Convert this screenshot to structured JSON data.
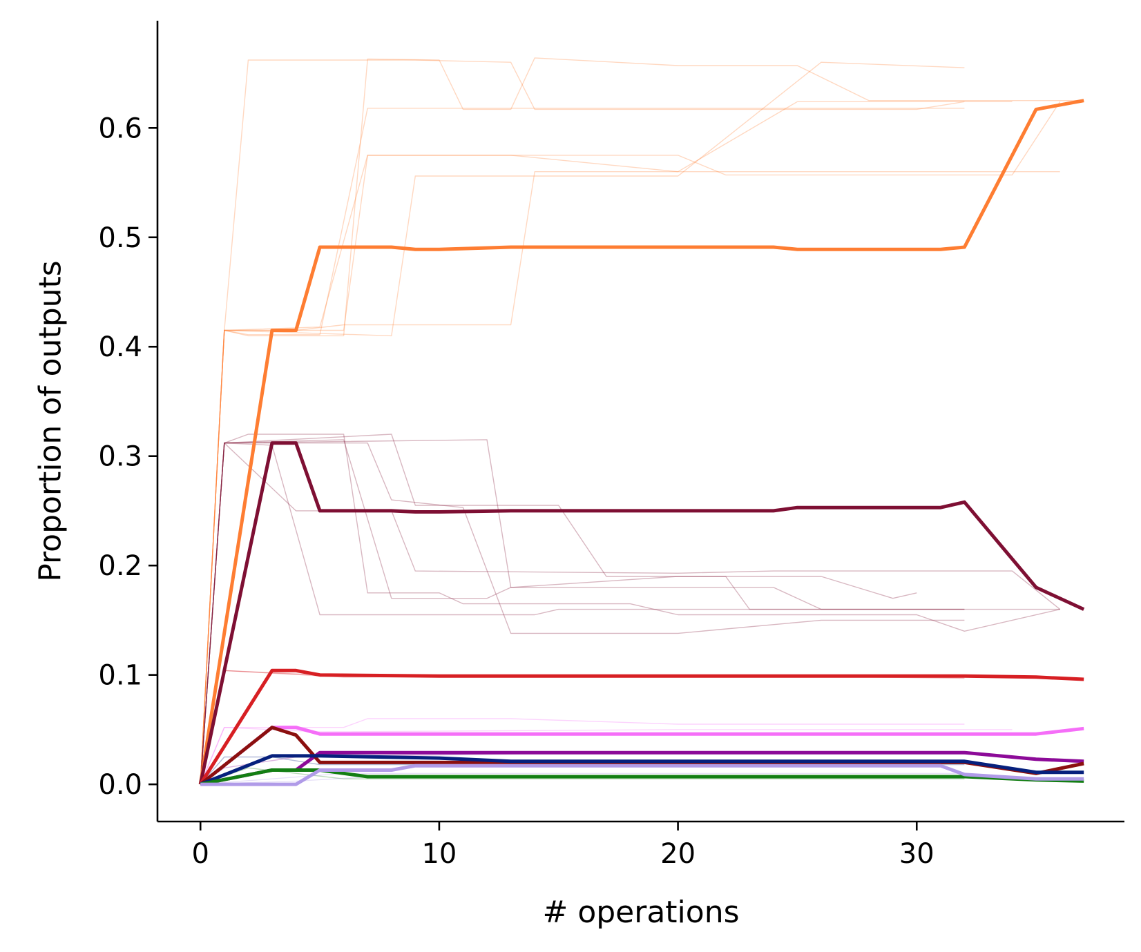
{
  "chart_data": {
    "type": "line",
    "title": "",
    "xlabel": "# operations",
    "ylabel": "Proportion of outputs",
    "xlim": [
      -1.8,
      38.7
    ],
    "ylim": [
      -0.034,
      0.698
    ],
    "xticks": [
      0,
      10,
      20,
      30
    ],
    "xtick_labels": [
      "0",
      "10",
      "20",
      "30"
    ],
    "yticks": [
      0.0,
      0.1,
      0.2,
      0.3,
      0.4,
      0.5,
      0.6
    ],
    "ytick_labels": [
      "0.0",
      "0.1",
      "0.2",
      "0.3",
      "0.4",
      "0.5",
      "0.6"
    ],
    "grid": false,
    "legend": "none",
    "series": [
      {
        "color": "#fe7d32",
        "highlight": false,
        "points": [
          [
            0,
            0
          ],
          [
            1,
            0.415
          ],
          [
            2,
            0.41
          ],
          [
            6,
            0.41
          ],
          [
            7,
            0.663
          ],
          [
            10,
            0.662
          ],
          [
            11,
            0.617
          ],
          [
            13,
            0.617
          ],
          [
            14,
            0.664
          ],
          [
            20,
            0.657
          ],
          [
            25,
            0.657
          ],
          [
            28,
            0.625
          ],
          [
            37,
            0.625
          ]
        ]
      },
      {
        "color": "#fe7d32",
        "highlight": false,
        "points": [
          [
            0,
            0
          ],
          [
            1,
            0.415
          ],
          [
            2,
            0.411
          ],
          [
            5,
            0.411
          ],
          [
            7,
            0.618
          ],
          [
            20,
            0.618
          ],
          [
            32,
            0.618
          ]
        ]
      },
      {
        "color": "#fe7d32",
        "highlight": false,
        "points": [
          [
            0,
            0
          ],
          [
            1,
            0.415
          ],
          [
            2,
            0.662
          ],
          [
            9,
            0.662
          ],
          [
            13,
            0.66
          ],
          [
            14,
            0.617
          ],
          [
            30,
            0.617
          ],
          [
            32,
            0.624
          ]
        ]
      },
      {
        "color": "#fe7d32",
        "highlight": false,
        "points": [
          [
            0,
            0
          ],
          [
            1,
            0.415
          ],
          [
            5,
            0.418
          ],
          [
            7,
            0.575
          ],
          [
            20,
            0.575
          ],
          [
            22,
            0.557
          ],
          [
            34,
            0.557
          ],
          [
            36,
            0.624
          ]
        ]
      },
      {
        "color": "#fe7d32",
        "highlight": false,
        "points": [
          [
            0,
            0
          ],
          [
            1,
            0.415
          ],
          [
            4,
            0.415
          ],
          [
            6,
            0.42
          ],
          [
            13,
            0.42
          ],
          [
            14,
            0.56
          ],
          [
            36,
            0.56
          ]
        ]
      },
      {
        "color": "#fe7d32",
        "highlight": false,
        "points": [
          [
            0,
            0
          ],
          [
            1,
            0.415
          ],
          [
            8,
            0.41
          ],
          [
            9,
            0.556
          ],
          [
            20,
            0.556
          ],
          [
            26,
            0.66
          ],
          [
            32,
            0.655
          ]
        ]
      },
      {
        "color": "#fe7d32",
        "highlight": false,
        "points": [
          [
            0,
            0
          ],
          [
            1,
            0.415
          ],
          [
            6,
            0.415
          ],
          [
            7,
            0.575
          ],
          [
            13,
            0.575
          ],
          [
            20,
            0.56
          ],
          [
            25,
            0.624
          ],
          [
            34,
            0.624
          ]
        ]
      },
      {
        "color": "#7e0f33",
        "highlight": false,
        "points": [
          [
            0,
            0
          ],
          [
            1,
            0.312
          ],
          [
            2,
            0.32
          ],
          [
            6,
            0.32
          ],
          [
            7,
            0.175
          ],
          [
            10,
            0.175
          ],
          [
            11,
            0.165
          ],
          [
            18,
            0.165
          ],
          [
            20,
            0.155
          ],
          [
            30,
            0.155
          ],
          [
            32,
            0.14
          ],
          [
            36,
            0.16
          ]
        ]
      },
      {
        "color": "#7e0f33",
        "highlight": false,
        "points": [
          [
            0,
            0
          ],
          [
            1,
            0.312
          ],
          [
            3,
            0.31
          ],
          [
            5,
            0.155
          ],
          [
            14,
            0.155
          ],
          [
            15,
            0.16
          ],
          [
            36,
            0.16
          ]
        ]
      },
      {
        "color": "#7e0f33",
        "highlight": false,
        "points": [
          [
            0,
            0
          ],
          [
            1,
            0.312
          ],
          [
            4,
            0.25
          ],
          [
            8,
            0.25
          ],
          [
            9,
            0.195
          ],
          [
            20,
            0.193
          ],
          [
            24,
            0.195
          ],
          [
            34,
            0.195
          ],
          [
            36,
            0.16
          ]
        ]
      },
      {
        "color": "#7e0f33",
        "highlight": false,
        "points": [
          [
            0,
            0
          ],
          [
            1,
            0.312
          ],
          [
            6,
            0.315
          ],
          [
            8,
            0.17
          ],
          [
            12,
            0.17
          ],
          [
            13,
            0.18
          ],
          [
            20,
            0.19
          ],
          [
            22,
            0.19
          ],
          [
            23,
            0.16
          ],
          [
            32,
            0.16
          ]
        ]
      },
      {
        "color": "#7e0f33",
        "highlight": false,
        "points": [
          [
            0,
            0
          ],
          [
            1,
            0.312
          ],
          [
            8,
            0.32
          ],
          [
            9,
            0.255
          ],
          [
            15,
            0.255
          ],
          [
            17,
            0.19
          ],
          [
            26,
            0.19
          ],
          [
            29,
            0.17
          ],
          [
            30,
            0.175
          ]
        ]
      },
      {
        "color": "#7e0f33",
        "highlight": false,
        "points": [
          [
            0,
            0
          ],
          [
            1,
            0.312
          ],
          [
            7,
            0.312
          ],
          [
            8,
            0.26
          ],
          [
            11,
            0.253
          ],
          [
            13,
            0.138
          ],
          [
            20,
            0.138
          ],
          [
            26,
            0.15
          ],
          [
            32,
            0.15
          ]
        ]
      },
      {
        "color": "#7e0f33",
        "highlight": false,
        "points": [
          [
            0,
            0
          ],
          [
            1,
            0.312
          ],
          [
            12,
            0.315
          ],
          [
            13,
            0.18
          ],
          [
            24,
            0.18
          ],
          [
            26,
            0.16
          ],
          [
            32,
            0.16
          ]
        ]
      },
      {
        "color": "#d71f23",
        "highlight": false,
        "points": [
          [
            0,
            0
          ],
          [
            1,
            0.104
          ],
          [
            5,
            0.1
          ],
          [
            20,
            0.1
          ],
          [
            32,
            0.097
          ]
        ]
      },
      {
        "color": "#d71f23",
        "highlight": false,
        "points": [
          [
            0,
            0
          ],
          [
            1,
            0.104
          ],
          [
            6,
            0.098
          ],
          [
            32,
            0.1
          ]
        ]
      },
      {
        "color": "#f56ef8",
        "highlight": false,
        "points": [
          [
            0,
            0
          ],
          [
            1,
            0.052
          ],
          [
            6,
            0.052
          ],
          [
            7,
            0.06
          ],
          [
            13,
            0.06
          ],
          [
            20,
            0.055
          ],
          [
            32,
            0.055
          ]
        ]
      },
      {
        "color": "#f56ef8",
        "highlight": false,
        "points": [
          [
            0,
            0
          ],
          [
            1,
            0.052
          ],
          [
            5,
            0.048
          ],
          [
            20,
            0.05
          ],
          [
            34,
            0.05
          ]
        ]
      },
      {
        "color": "#8c0a98",
        "highlight": false,
        "points": [
          [
            0,
            0
          ],
          [
            1,
            0.015
          ],
          [
            4,
            0.025
          ],
          [
            20,
            0.03
          ],
          [
            32,
            0.03
          ]
        ]
      },
      {
        "color": "#06207d",
        "highlight": false,
        "points": [
          [
            0,
            0
          ],
          [
            1,
            0.025
          ],
          [
            3,
            0.025
          ],
          [
            5,
            0.018
          ],
          [
            32,
            0.018
          ]
        ]
      },
      {
        "color": "#137e13",
        "highlight": false,
        "points": [
          [
            0,
            0
          ],
          [
            2,
            0.015
          ],
          [
            6,
            0.005
          ],
          [
            32,
            0.005
          ]
        ]
      },
      {
        "color": "#b09be8",
        "highlight": false,
        "points": [
          [
            0,
            0
          ],
          [
            3,
            0.005
          ],
          [
            6,
            0.01
          ],
          [
            32,
            0.01
          ]
        ]
      },
      {
        "color": "#b09be8",
        "highlight": false,
        "points": [
          [
            0,
            0
          ],
          [
            4,
            0.003
          ],
          [
            8,
            0.008
          ],
          [
            34,
            0.006
          ]
        ]
      },
      {
        "color": "#fe7d32",
        "highlight": true,
        "points": [
          [
            0,
            0
          ],
          [
            3,
            0.415
          ],
          [
            4,
            0.415
          ],
          [
            5,
            0.491
          ],
          [
            8,
            0.491
          ],
          [
            9,
            0.489
          ],
          [
            10,
            0.489
          ],
          [
            13,
            0.491
          ],
          [
            24,
            0.491
          ],
          [
            25,
            0.489
          ],
          [
            31,
            0.489
          ],
          [
            32,
            0.491
          ],
          [
            35,
            0.617
          ],
          [
            37,
            0.625
          ]
        ]
      },
      {
        "color": "#7e0f33",
        "highlight": true,
        "points": [
          [
            0,
            0
          ],
          [
            3,
            0.312
          ],
          [
            4,
            0.312
          ],
          [
            5,
            0.25
          ],
          [
            8,
            0.25
          ],
          [
            9,
            0.249
          ],
          [
            10,
            0.249
          ],
          [
            13,
            0.25
          ],
          [
            24,
            0.25
          ],
          [
            25,
            0.253
          ],
          [
            31,
            0.253
          ],
          [
            32,
            0.258
          ],
          [
            35,
            0.18
          ],
          [
            37,
            0.16
          ]
        ]
      },
      {
        "color": "#d71f23",
        "highlight": true,
        "points": [
          [
            0,
            0
          ],
          [
            3,
            0.104
          ],
          [
            4,
            0.104
          ],
          [
            5,
            0.1
          ],
          [
            10,
            0.099
          ],
          [
            32,
            0.099
          ],
          [
            35,
            0.098
          ],
          [
            37,
            0.096
          ]
        ]
      },
      {
        "color": "#f56ef8",
        "highlight": true,
        "points": [
          [
            0,
            0
          ],
          [
            3,
            0.052
          ],
          [
            4,
            0.052
          ],
          [
            5,
            0.046
          ],
          [
            35,
            0.046
          ],
          [
            37,
            0.051
          ]
        ]
      },
      {
        "color": "#8c0a98",
        "highlight": true,
        "points": [
          [
            0,
            0
          ],
          [
            3,
            0.013
          ],
          [
            4,
            0.013
          ],
          [
            5,
            0.029
          ],
          [
            32,
            0.029
          ],
          [
            35,
            0.023
          ],
          [
            37,
            0.021
          ]
        ]
      },
      {
        "color": "#8b0f0f",
        "highlight": true,
        "points": [
          [
            0,
            0
          ],
          [
            3,
            0.052
          ],
          [
            4,
            0.045
          ],
          [
            5,
            0.02
          ],
          [
            32,
            0.02
          ],
          [
            35,
            0.01
          ],
          [
            37,
            0.019
          ]
        ]
      },
      {
        "color": "#06207d",
        "highlight": true,
        "points": [
          [
            0,
            0
          ],
          [
            3,
            0.026
          ],
          [
            5,
            0.026
          ],
          [
            10,
            0.024
          ],
          [
            13,
            0.021
          ],
          [
            32,
            0.021
          ],
          [
            35,
            0.011
          ],
          [
            37,
            0.011
          ]
        ]
      },
      {
        "color": "#137e13",
        "highlight": true,
        "points": [
          [
            0,
            0
          ],
          [
            3,
            0.013
          ],
          [
            5,
            0.013
          ],
          [
            6,
            0.01
          ],
          [
            7,
            0.007
          ],
          [
            32,
            0.007
          ],
          [
            35,
            0.004
          ],
          [
            37,
            0.003
          ]
        ]
      },
      {
        "color": "#b09be8",
        "highlight": true,
        "points": [
          [
            0,
            0
          ],
          [
            4,
            0
          ],
          [
            5,
            0.013
          ],
          [
            8,
            0.013
          ],
          [
            9,
            0.017
          ],
          [
            31,
            0.017
          ],
          [
            32,
            0.009
          ],
          [
            35,
            0.005
          ],
          [
            37,
            0.005
          ]
        ]
      }
    ]
  }
}
